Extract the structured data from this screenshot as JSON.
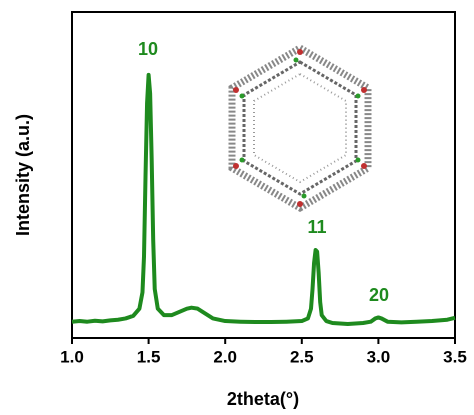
{
  "chart_data": {
    "type": "line",
    "xlabel": "2theta(°)",
    "ylabel": "Intensity (a.u.)",
    "annotations": [
      "10",
      "11",
      "20"
    ],
    "xlim": [
      1.0,
      3.5
    ],
    "xticks": [
      {
        "value": 1.0,
        "label": "1.0"
      },
      1.5,
      {
        "value": 2.0,
        "label": "2.0"
      },
      2.5,
      {
        "value": 3.0,
        "label": "3.0"
      },
      3.5
    ],
    "ylim": [
      0,
      100
    ],
    "grid": false,
    "series": [
      {
        "color": "#1e8a1e",
        "x": [
          1.0,
          1.05,
          1.1,
          1.15,
          1.2,
          1.25,
          1.3,
          1.35,
          1.4,
          1.44,
          1.46,
          1.47,
          1.48,
          1.49,
          1.5,
          1.51,
          1.52,
          1.53,
          1.54,
          1.56,
          1.6,
          1.65,
          1.7,
          1.75,
          1.78,
          1.82,
          1.87,
          1.92,
          2.0,
          2.1,
          2.2,
          2.3,
          2.4,
          2.5,
          2.54,
          2.56,
          2.57,
          2.58,
          2.59,
          2.6,
          2.61,
          2.62,
          2.63,
          2.66,
          2.7,
          2.8,
          2.9,
          2.95,
          2.98,
          3.0,
          3.02,
          3.06,
          3.15,
          3.25,
          3.35,
          3.45,
          3.5
        ],
        "values": [
          5,
          5.2,
          5.0,
          5.3,
          5.1,
          5.4,
          5.6,
          6,
          6.8,
          9,
          14,
          25,
          50,
          72,
          80.7,
          75,
          55,
          30,
          15,
          9,
          7,
          7,
          8,
          9,
          9.3,
          9,
          7.5,
          6,
          5.2,
          5,
          4.9,
          4.9,
          5,
          5.2,
          6,
          9,
          15,
          23,
          27,
          26.5,
          20,
          11,
          7,
          5.2,
          4.6,
          4.3,
          4.6,
          5,
          6,
          6.3,
          6,
          5,
          4.8,
          5,
          5.2,
          5.6,
          6.2
        ]
      }
    ]
  }
}
